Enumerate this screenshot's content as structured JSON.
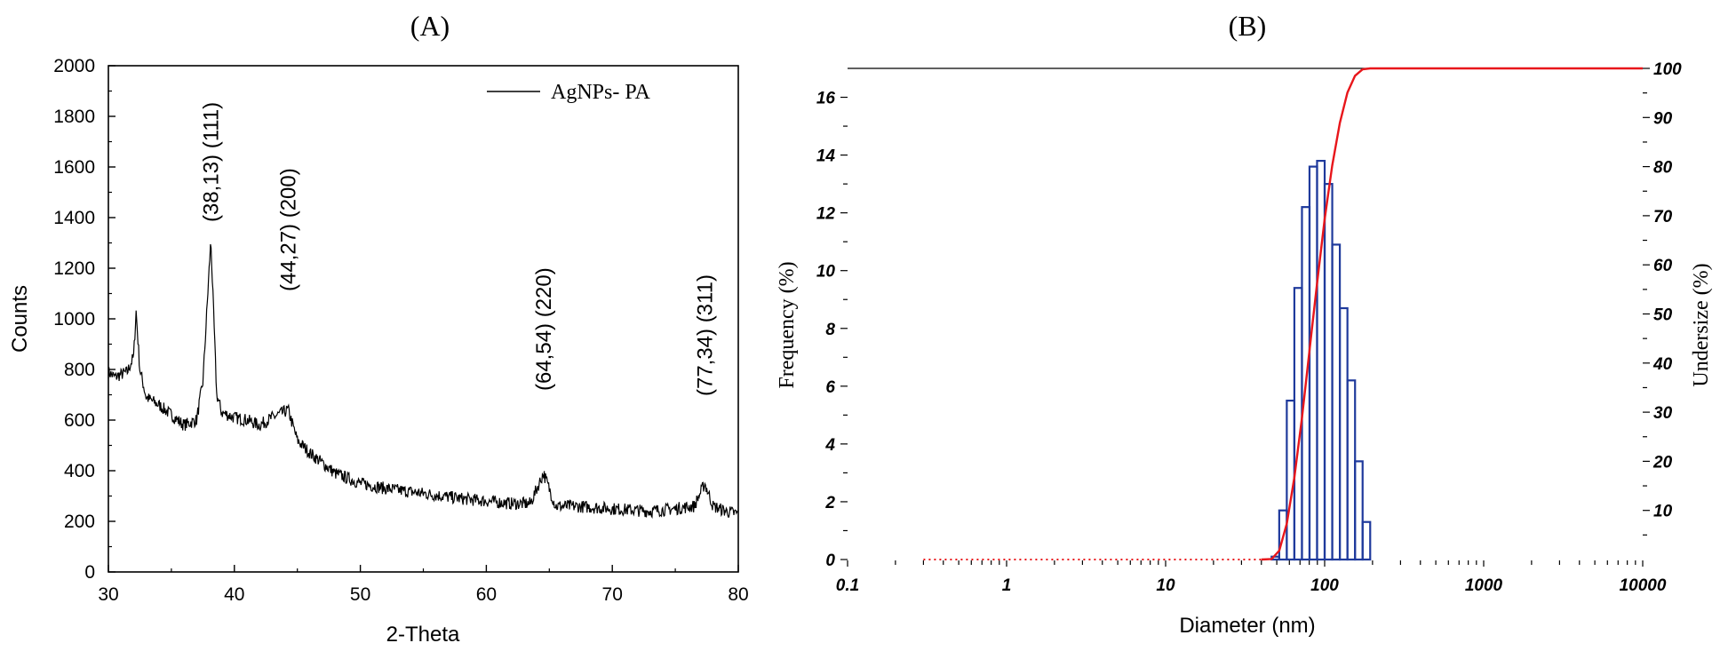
{
  "colors": {
    "trace": "#000000",
    "histogram": "#1f3a9c",
    "cumulative": "#e8161b"
  },
  "panel_a": {
    "label": "(A)"
  },
  "panel_b": {
    "label": "(B)"
  },
  "chart_data": [
    {
      "type": "line",
      "title": "",
      "xlabel": "2-Theta",
      "ylabel": "Counts",
      "xlim": [
        30,
        80
      ],
      "ylim": [
        0,
        2000
      ],
      "xticks": [
        "30",
        "40",
        "50",
        "60",
        "70",
        "80"
      ],
      "yticks": [
        "0",
        "200",
        "400",
        "600",
        "800",
        "1000",
        "1200",
        "1400",
        "1600",
        "1800",
        "2000"
      ],
      "legend": {
        "position": "top-right",
        "entries": [
          "AgNPs- PA"
        ]
      },
      "series": [
        {
          "name": "AgNPs- PA",
          "x": [
            30,
            30.5,
            31,
            31.5,
            32,
            32.2,
            32.5,
            33,
            34,
            35,
            36,
            37,
            37.5,
            38.13,
            38.6,
            39,
            40,
            41,
            42,
            43,
            44.27,
            45,
            46,
            47,
            48,
            50,
            52,
            55,
            58,
            60,
            62,
            63.5,
            64.54,
            65.5,
            67,
            70,
            73,
            75,
            76.5,
            77.34,
            78,
            79,
            80
          ],
          "y": [
            790,
            770,
            780,
            790,
            850,
            1030,
            800,
            690,
            660,
            620,
            580,
            600,
            750,
            1310,
            700,
            630,
            610,
            600,
            580,
            610,
            640,
            520,
            470,
            430,
            390,
            350,
            330,
            310,
            290,
            280,
            270,
            270,
            390,
            260,
            260,
            250,
            240,
            250,
            260,
            350,
            260,
            240,
            230
          ]
        }
      ],
      "annotations": [
        "(38,13) (111)",
        "(44,27) (200)",
        "(64,54) (220)",
        "(77,34) (311)"
      ]
    },
    {
      "type": "bar",
      "title": "",
      "xlabel": "Diameter (nm)",
      "ylabel": "Frequency (%)",
      "ylabel_right": "Undersize (%)",
      "xscale": "log",
      "xlim": [
        0.1,
        10000
      ],
      "ylim": [
        0,
        17
      ],
      "ylim_right": [
        0,
        100
      ],
      "xticks": [
        "0.1",
        "1",
        "10",
        "100",
        "1000",
        "10000"
      ],
      "yticks": [
        "0",
        "2",
        "4",
        "6",
        "8",
        "10",
        "12",
        "14",
        "16"
      ],
      "yticks_right": [
        "10",
        "20",
        "30",
        "40",
        "50",
        "60",
        "70",
        "80",
        "90",
        "100"
      ],
      "bins_nm": [
        46.4,
        51.8,
        57.8,
        64.5,
        72.0,
        80.3,
        89.6,
        100,
        111.6,
        124.6,
        139.1,
        155.2,
        173.2
      ],
      "values": [
        0.1,
        1.7,
        5.5,
        9.4,
        12.2,
        13.6,
        13.8,
        13.0,
        10.9,
        8.7,
        6.2,
        3.4,
        1.3
      ],
      "cumulative_x": [
        0.3,
        40,
        46.4,
        51.8,
        57.8,
        64.5,
        72.0,
        80.3,
        89.6,
        100,
        111.6,
        124.6,
        139.1,
        155.2,
        173.2,
        193.3,
        10000
      ],
      "cumulative_y": [
        0,
        0,
        0.1,
        1.8,
        7.3,
        16.7,
        28.9,
        42.5,
        56.3,
        69.3,
        80.2,
        88.9,
        95.1,
        98.5,
        99.8,
        100,
        100
      ]
    }
  ]
}
